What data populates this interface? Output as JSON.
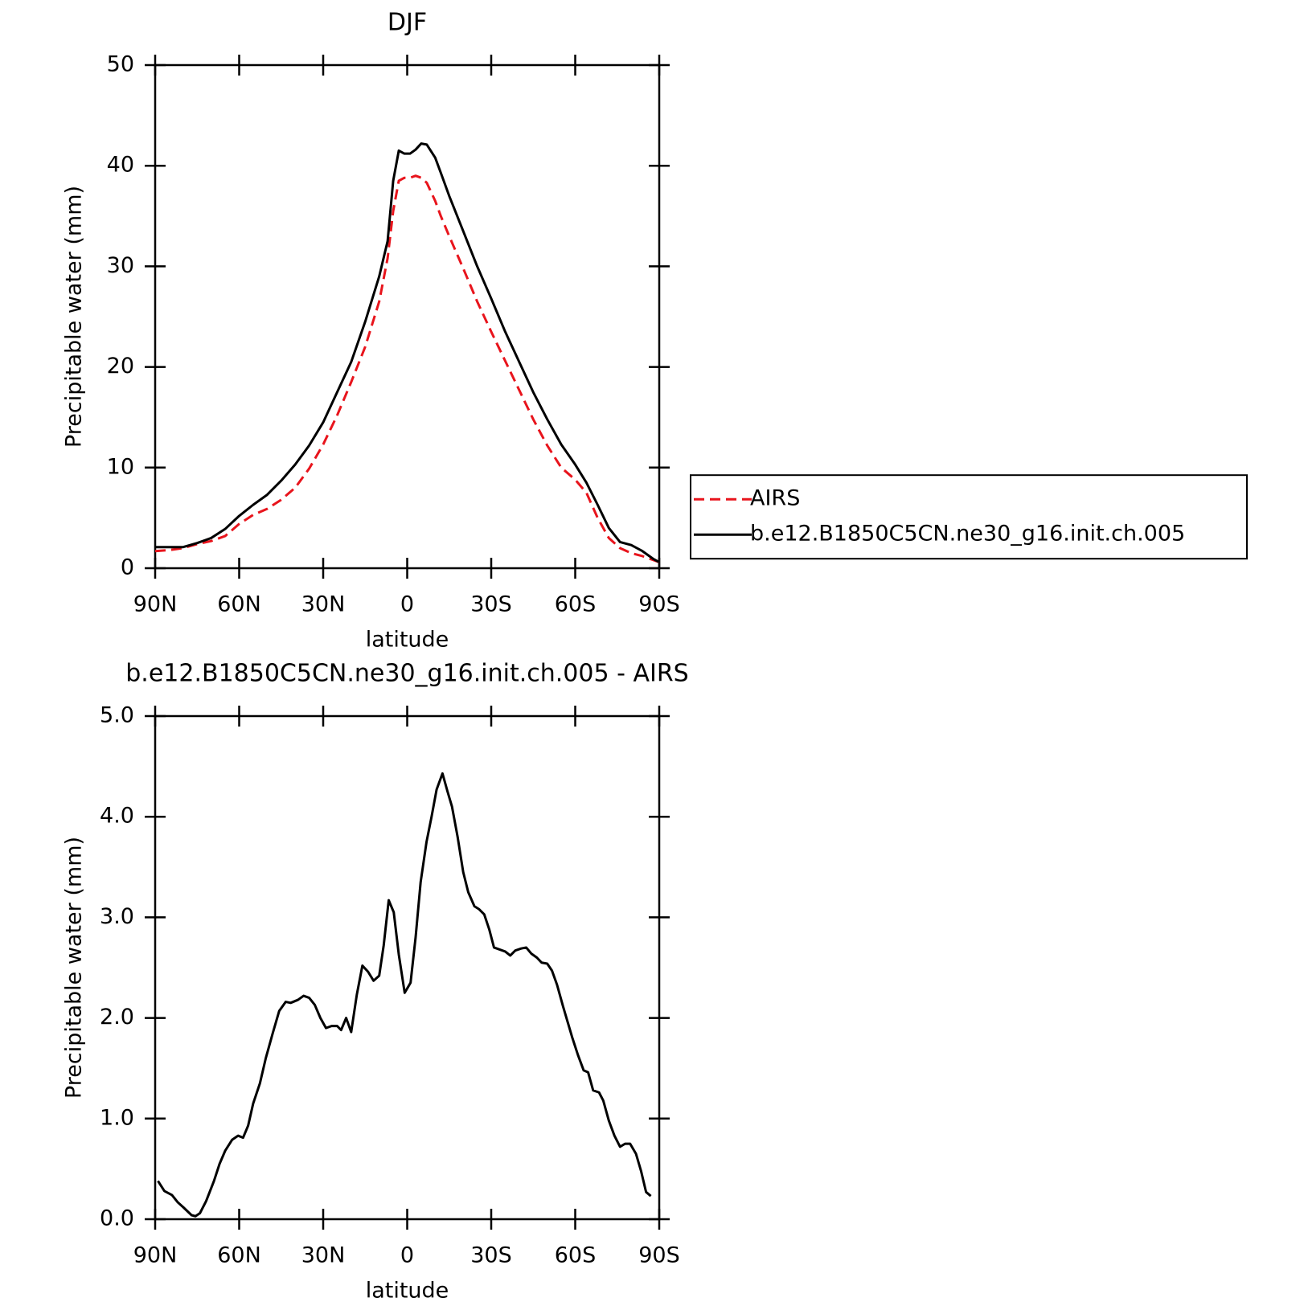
{
  "chart_data": [
    {
      "type": "line",
      "title": "DJF",
      "xlabel": "latitude",
      "ylabel": "Precipitable water (mm)",
      "x": [
        90,
        85,
        80,
        75,
        70,
        65,
        60,
        55,
        50,
        45,
        40,
        35,
        30,
        25,
        20,
        15,
        10,
        7,
        5,
        3,
        1,
        -1,
        -3,
        -5,
        -7,
        -10,
        -12,
        -15,
        -20,
        -25,
        -30,
        -35,
        -40,
        -45,
        -50,
        -55,
        -60,
        -64,
        -68,
        -72,
        -76,
        -80,
        -84,
        -88,
        -90
      ],
      "series": [
        {
          "name": "AIRS",
          "color": "#e8141c",
          "dash": "dashed",
          "values": [
            1.7,
            1.8,
            2.0,
            2.4,
            2.7,
            3.2,
            4.4,
            5.3,
            5.9,
            6.8,
            8.0,
            9.9,
            12.3,
            15.2,
            18.5,
            22,
            26.5,
            30.8,
            35.5,
            38.5,
            38.8,
            38.8,
            39.0,
            38.8,
            38.3,
            36.5,
            35,
            33,
            29.8,
            26.5,
            23.5,
            20.6,
            17.7,
            14.8,
            12.2,
            10.0,
            8.8,
            7.5,
            5.0,
            3.0,
            2.0,
            1.5,
            1.2,
            0.8,
            0.6
          ]
        },
        {
          "name": "b.e12.B1850C5CN.ne30_g16.init.ch.005",
          "color": "#000000",
          "dash": "solid",
          "values": [
            2.1,
            2.1,
            2.1,
            2.5,
            3.0,
            3.9,
            5.2,
            6.3,
            7.3,
            8.7,
            10.3,
            12.2,
            14.5,
            17.5,
            20.5,
            24.5,
            29,
            32.5,
            38.5,
            41.5,
            41.2,
            41.2,
            41.6,
            42.2,
            42.1,
            40.8,
            39.3,
            37,
            33.5,
            30,
            26.8,
            23.5,
            20.5,
            17.5,
            14.8,
            12.3,
            10.3,
            8.5,
            6.3,
            4.0,
            2.6,
            2.3,
            1.7,
            0.9,
            0.6
          ]
        }
      ],
      "xlim": [
        90,
        -90
      ],
      "xticks": [
        {
          "value": 90,
          "label": "90N"
        },
        {
          "value": 60,
          "label": "60N"
        },
        {
          "value": 30,
          "label": "30N"
        },
        0,
        {
          "value": -30,
          "label": "30S"
        },
        {
          "value": -60,
          "label": "60S"
        },
        {
          "value": -90,
          "label": "90S"
        }
      ],
      "ylim": [
        0,
        50
      ],
      "yticks": [
        0,
        10,
        20,
        30,
        40,
        50
      ],
      "legend": "right"
    },
    {
      "type": "line",
      "title": "b.e12.B1850C5CN.ne30_g16.init.ch.005 - AIRS",
      "xlabel": "latitude",
      "ylabel": "Precipitable water (mm)",
      "x": [
        89,
        86.7,
        84,
        82,
        80,
        77,
        75.6,
        74,
        71.8,
        69,
        67,
        65,
        62.5,
        60.4,
        58.6,
        56.8,
        55,
        52.6,
        50.5,
        48,
        45.7,
        43.4,
        41.6,
        39,
        37,
        35,
        33,
        31,
        29,
        27,
        25,
        23.6,
        21.8,
        20,
        18,
        16,
        14,
        12,
        10,
        8.4,
        6.6,
        4.8,
        3,
        0.9,
        -1.2,
        -3,
        -4.8,
        -6.9,
        -8.7,
        -10.5,
        -12.6,
        -14.4,
        -16,
        -18,
        -20,
        -21.8,
        -24,
        -25.7,
        -27.5,
        -29.3,
        -31,
        -33,
        -35,
        -36.8,
        -38.6,
        -40.7,
        -42.5,
        -44.3,
        -46.3,
        -48,
        -50,
        -51.7,
        -53.5,
        -55.6,
        -57.4,
        -59,
        -61,
        -63,
        -64.6,
        -66.4,
        -68.5,
        -70,
        -72,
        -74,
        -76,
        -77.8,
        -79.6,
        -81.7,
        -83.5,
        -85.3,
        -87
      ],
      "values": [
        0.38,
        0.28,
        0.24,
        0.17,
        0.12,
        0.04,
        0.03,
        0.06,
        0.18,
        0.38,
        0.55,
        0.68,
        0.79,
        0.83,
        0.81,
        0.93,
        1.15,
        1.35,
        1.6,
        1.85,
        2.07,
        2.16,
        2.15,
        2.18,
        2.22,
        2.2,
        2.13,
        2.0,
        1.9,
        1.92,
        1.92,
        1.88,
        2.0,
        1.86,
        2.23,
        2.52,
        2.46,
        2.37,
        2.42,
        2.72,
        3.17,
        3.05,
        2.63,
        2.25,
        2.35,
        2.8,
        3.35,
        3.75,
        4.0,
        4.27,
        4.43,
        4.25,
        4.1,
        3.8,
        3.45,
        3.25,
        3.11,
        3.08,
        3.03,
        2.88,
        2.7,
        2.68,
        2.66,
        2.62,
        2.67,
        2.69,
        2.7,
        2.64,
        2.6,
        2.55,
        2.54,
        2.47,
        2.33,
        2.12,
        1.95,
        1.8,
        1.63,
        1.48,
        1.46,
        1.28,
        1.26,
        1.18,
        0.98,
        0.83,
        0.72,
        0.75,
        0.75,
        0.65,
        0.48,
        0.27,
        0.23
      ],
      "color": "#000000",
      "xlim": [
        90,
        -90
      ],
      "xticks": [
        {
          "value": 90,
          "label": "90N"
        },
        {
          "value": 60,
          "label": "60N"
        },
        {
          "value": 30,
          "label": "30N"
        },
        0,
        {
          "value": -30,
          "label": "30S"
        },
        {
          "value": -60,
          "label": "60S"
        },
        {
          "value": -90,
          "label": "90S"
        }
      ],
      "ylim": [
        0,
        5
      ],
      "yticks": [
        {
          "value": 0,
          "label": "0.0"
        },
        {
          "value": 1,
          "label": "1.0"
        },
        {
          "value": 2,
          "label": "2.0"
        },
        {
          "value": 3,
          "label": "3.0"
        },
        {
          "value": 4,
          "label": "4.0"
        },
        {
          "value": 5,
          "label": "5.0"
        }
      ]
    }
  ]
}
